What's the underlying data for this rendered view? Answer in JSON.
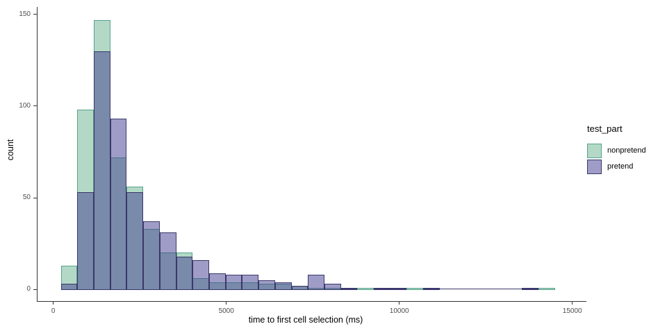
{
  "chart_data": {
    "type": "histogram",
    "title": "",
    "xlabel": "time to first cell selection (ms)",
    "ylabel": "count",
    "x_ticks": [
      0,
      5000,
      10000,
      15000
    ],
    "y_ticks": [
      0,
      50,
      100,
      150
    ],
    "xlim": [
      -500,
      15400
    ],
    "ylim": [
      -7,
      154
    ],
    "grid": "off",
    "background": "#FFFFFF",
    "axis_color": "#333333",
    "tick_label_color": "#4D4D4D",
    "bins_start_ms": 220,
    "bin_width_ms": 476,
    "legend": {
      "title": "test_part",
      "position": "right",
      "entries": [
        {
          "label": "nonpretend",
          "fill": "#B3D9C6",
          "border": "#56A18C"
        },
        {
          "label": "pretend",
          "fill": "#9F9DC7",
          "border": "#3A3768"
        }
      ]
    },
    "series": [
      {
        "name": "nonpretend",
        "fill": "#B3D9C6",
        "border": "#56A18C",
        "counts": [
          13,
          98,
          147,
          72,
          56,
          33,
          20,
          20,
          6,
          4,
          4,
          4,
          3,
          3,
          2,
          1,
          1,
          0,
          1,
          0,
          0,
          1,
          0,
          0,
          0,
          0,
          0,
          0,
          0,
          1
        ]
      },
      {
        "name": "pretend",
        "fill": "rgba(63,59,143,0.5)",
        "border": "#3A3768",
        "counts": [
          3,
          53,
          130,
          93,
          53,
          37,
          31,
          18,
          16,
          9,
          8,
          8,
          5,
          4,
          2,
          8,
          3,
          1,
          0,
          1,
          1,
          0,
          1,
          0,
          0,
          0,
          0,
          0,
          1,
          0
        ]
      }
    ]
  }
}
